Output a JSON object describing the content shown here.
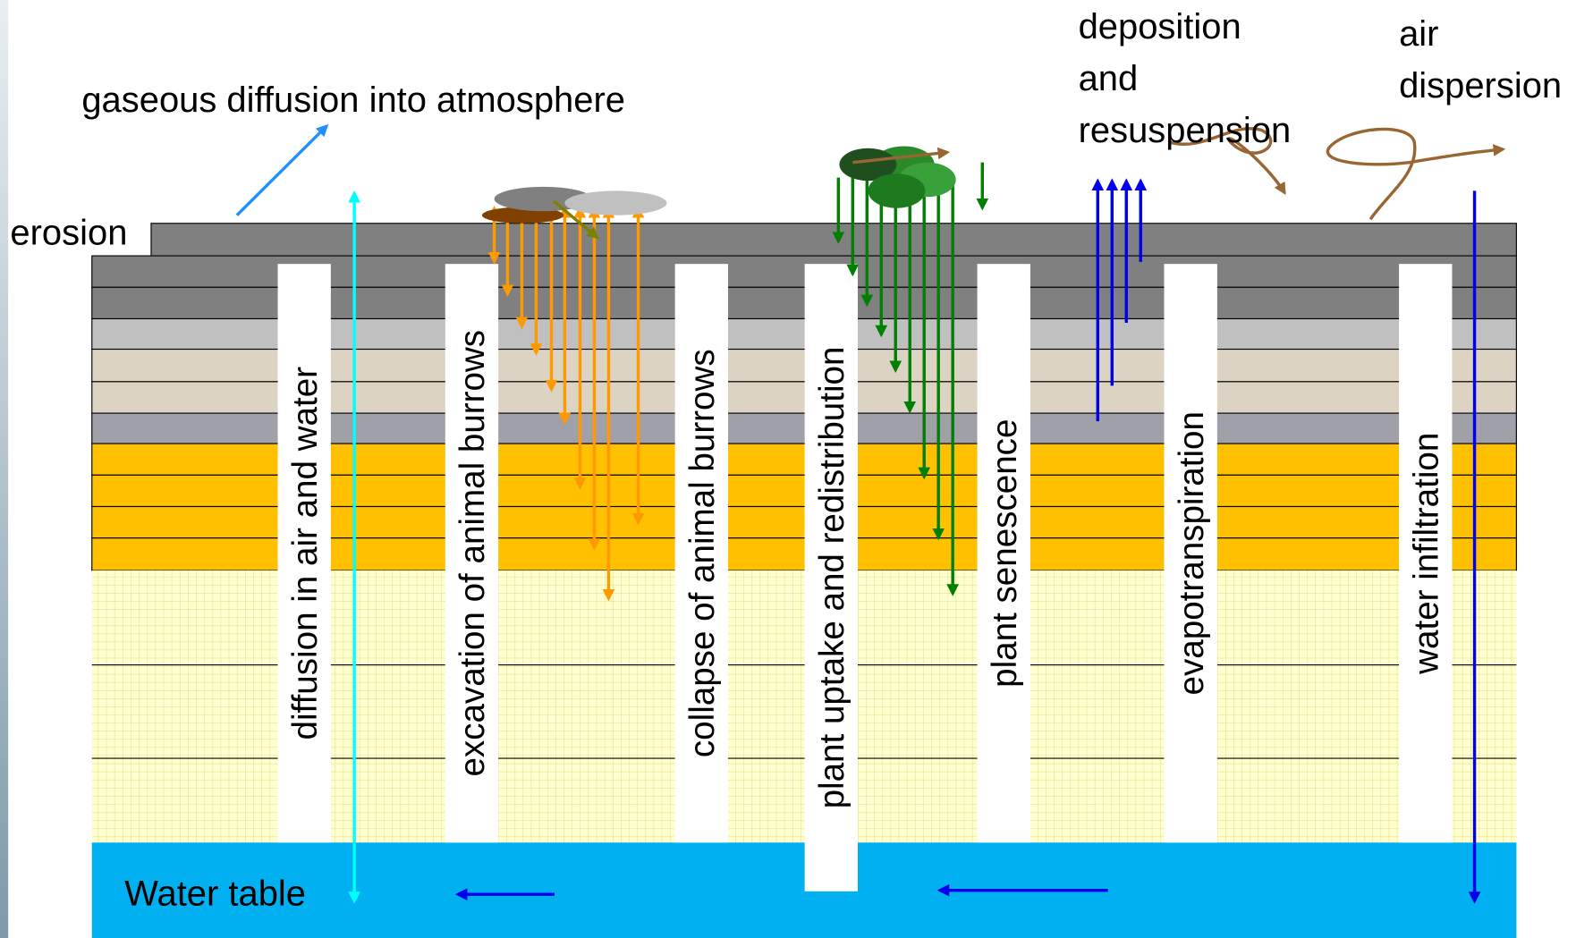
{
  "labels": {
    "gaseous": "gaseous diffusion into atmosphere",
    "erosion": "erosion",
    "deposition": [
      "deposition",
      "and",
      "resuspension"
    ],
    "air": [
      "air",
      "dispersion"
    ],
    "water_table": "Water table"
  },
  "columns": [
    "diffusion in air and water",
    "excavation of animal burrows",
    "collapse of animal burrows",
    "plant uptake and redistribution",
    "plant senescence",
    "evapotranspiration",
    "water infiltration"
  ]
}
